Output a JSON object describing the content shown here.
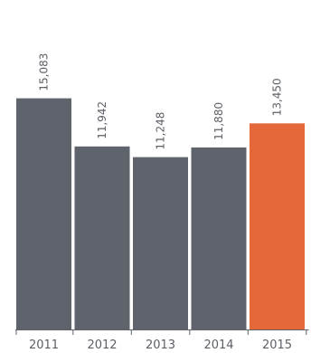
{
  "chart_data": {
    "type": "bar",
    "categories": [
      "2011",
      "2012",
      "2013",
      "2014",
      "2015"
    ],
    "values": [
      15083,
      11942,
      11248,
      11880,
      13450
    ],
    "value_labels": [
      "15,083",
      "11,942",
      "11,248",
      "11,880",
      "13,450"
    ],
    "highlight_index": 4,
    "ylim": [
      0,
      21500
    ],
    "grid": false,
    "legend": "none",
    "colors": {
      "bar": "#5e636c",
      "highlight": "#e4683a",
      "axis": "#5e636c",
      "text": "#5b5f66"
    }
  }
}
